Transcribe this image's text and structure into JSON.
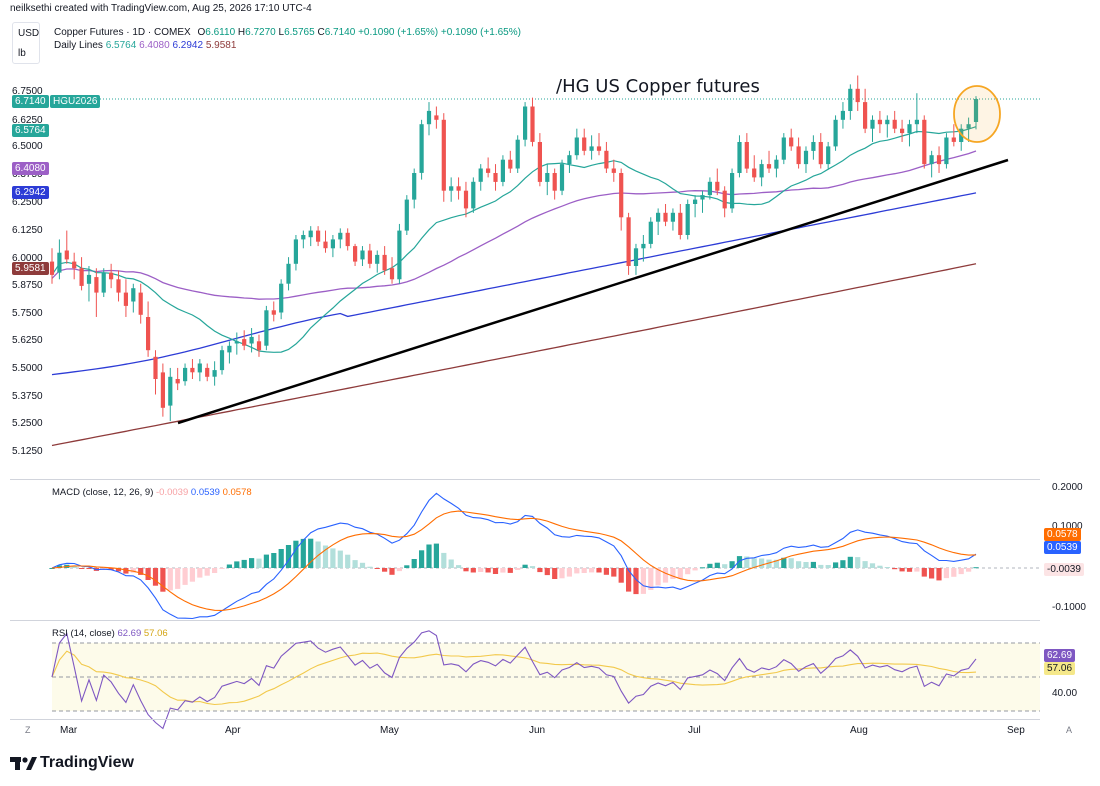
{
  "header": {
    "credit": "neilksethi created with TradingView.com, Aug 25, 2026 17:10 UTC-4",
    "currency": "USD",
    "unit": "lb",
    "symbol_line": "Copper Futures · 1D · COMEX",
    "ohlc": {
      "o_label": "O",
      "o": "6.6110",
      "h_label": "H",
      "h": "6.7270",
      "l_label": "L",
      "l": "6.5765",
      "c_label": "C",
      "c": "6.7140",
      "change": "+0.1090 (+1.65%)",
      "change2": "+0.1090 (+1.65%)"
    },
    "daily_lines_label": "Daily Lines",
    "daily_lines": [
      "6.5764",
      "6.4080",
      "6.2942",
      "5.9581"
    ]
  },
  "colors": {
    "up": "#26a69a",
    "down": "#ef5350",
    "ma20": "#26a69a",
    "ma50": "#9c5fc6",
    "ma100": "#2d3cd6",
    "ma200": "#8e3b3b",
    "macd": "#2962ff",
    "signal": "#ff6d00",
    "rsi": "#7e57c2",
    "rsi_ma": "#f2c94c",
    "trendline": "#000000",
    "circle": "#f6a623"
  },
  "price_tags": {
    "last": "6.7140",
    "symbol": "HGU2026",
    "ma20": "6.5764",
    "ma50": "6.4080",
    "ma100": "6.2942",
    "ma200": "5.9581"
  },
  "annotation": "/HG US Copper futures",
  "y_labels": [
    "6.7500",
    "6.6250",
    "6.5000",
    "6.3750",
    "6.2500",
    "6.1250",
    "6.0000",
    "5.8750",
    "5.7500",
    "5.6250",
    "5.5000",
    "5.3750",
    "5.2500",
    "5.1250"
  ],
  "macd_panel": {
    "label": "MACD (close, 12, 26, 9)",
    "values": [
      "-0.0039",
      "0.0539",
      "0.0578"
    ],
    "axis": [
      "0.2000",
      "0.1000",
      "-0.1000"
    ],
    "tags": [
      "0.0578",
      "0.0539",
      "-0.0039"
    ]
  },
  "rsi_panel": {
    "label": "RSI (14, close)",
    "values": [
      "62.69",
      "57.06"
    ],
    "axis": [
      "40.00"
    ],
    "tags": [
      "62.69",
      "57.06"
    ]
  },
  "x_labels": [
    "Mar",
    "Apr",
    "May",
    "Jun",
    "Jul",
    "Aug",
    "Sep"
  ],
  "corner_left": "Z",
  "corner_right": "A",
  "logo_text": "TradingView",
  "chart_data": {
    "type": "candlestick",
    "title": "Copper Futures · 1D · COMEX",
    "ylim": [
      5.1,
      6.8
    ],
    "x_range": [
      "2026-02-24",
      "2026-08-25"
    ],
    "ohlc_last": {
      "open": 6.611,
      "high": 6.727,
      "low": 6.5765,
      "close": 6.714
    },
    "candles": [
      {
        "d": "02-25",
        "o": 5.98,
        "h": 6.04,
        "l": 5.88,
        "c": 5.92
      },
      {
        "d": "02-26",
        "o": 5.93,
        "h": 6.08,
        "l": 5.9,
        "c": 6.02
      },
      {
        "d": "02-27",
        "o": 6.03,
        "h": 6.12,
        "l": 5.97,
        "c": 5.99
      },
      {
        "d": "03-02",
        "o": 5.98,
        "h": 6.02,
        "l": 5.9,
        "c": 5.95
      },
      {
        "d": "03-03",
        "o": 5.95,
        "h": 6.0,
        "l": 5.85,
        "c": 5.87
      },
      {
        "d": "03-04",
        "o": 5.88,
        "h": 5.96,
        "l": 5.8,
        "c": 5.92
      },
      {
        "d": "03-05",
        "o": 5.91,
        "h": 5.95,
        "l": 5.73,
        "c": 5.84
      },
      {
        "d": "03-06",
        "o": 5.84,
        "h": 5.95,
        "l": 5.82,
        "c": 5.93
      },
      {
        "d": "03-09",
        "o": 5.93,
        "h": 5.97,
        "l": 5.86,
        "c": 5.9
      },
      {
        "d": "03-10",
        "o": 5.9,
        "h": 5.94,
        "l": 5.8,
        "c": 5.84
      },
      {
        "d": "03-11",
        "o": 5.84,
        "h": 5.9,
        "l": 5.73,
        "c": 5.78
      },
      {
        "d": "03-12",
        "o": 5.8,
        "h": 5.88,
        "l": 5.75,
        "c": 5.86
      },
      {
        "d": "03-13",
        "o": 5.84,
        "h": 5.88,
        "l": 5.7,
        "c": 5.74
      },
      {
        "d": "03-16",
        "o": 5.73,
        "h": 5.8,
        "l": 5.55,
        "c": 5.58
      },
      {
        "d": "03-17",
        "o": 5.55,
        "h": 5.58,
        "l": 5.38,
        "c": 5.45
      },
      {
        "d": "03-18",
        "o": 5.48,
        "h": 5.52,
        "l": 5.28,
        "c": 5.32
      },
      {
        "d": "03-19",
        "o": 5.33,
        "h": 5.5,
        "l": 5.26,
        "c": 5.46
      },
      {
        "d": "03-20",
        "o": 5.45,
        "h": 5.5,
        "l": 5.4,
        "c": 5.43
      },
      {
        "d": "03-23",
        "o": 5.44,
        "h": 5.52,
        "l": 5.42,
        "c": 5.5
      },
      {
        "d": "03-24",
        "o": 5.5,
        "h": 5.54,
        "l": 5.45,
        "c": 5.48
      },
      {
        "d": "03-25",
        "o": 5.48,
        "h": 5.54,
        "l": 5.44,
        "c": 5.52
      },
      {
        "d": "03-26",
        "o": 5.5,
        "h": 5.52,
        "l": 5.44,
        "c": 5.46
      },
      {
        "d": "03-27",
        "o": 5.46,
        "h": 5.53,
        "l": 5.42,
        "c": 5.49
      },
      {
        "d": "03-30",
        "o": 5.49,
        "h": 5.6,
        "l": 5.47,
        "c": 5.58
      },
      {
        "d": "03-31",
        "o": 5.57,
        "h": 5.62,
        "l": 5.52,
        "c": 5.6
      },
      {
        "d": "04-01",
        "o": 5.61,
        "h": 5.66,
        "l": 5.56,
        "c": 5.62
      },
      {
        "d": "04-02",
        "o": 5.63,
        "h": 5.67,
        "l": 5.58,
        "c": 5.6
      },
      {
        "d": "04-06",
        "o": 5.61,
        "h": 5.68,
        "l": 5.57,
        "c": 5.64
      },
      {
        "d": "04-07",
        "o": 5.62,
        "h": 5.65,
        "l": 5.55,
        "c": 5.58
      },
      {
        "d": "04-08",
        "o": 5.6,
        "h": 5.78,
        "l": 5.58,
        "c": 5.76
      },
      {
        "d": "04-09",
        "o": 5.76,
        "h": 5.8,
        "l": 5.71,
        "c": 5.74
      },
      {
        "d": "04-10",
        "o": 5.75,
        "h": 5.9,
        "l": 5.72,
        "c": 5.88
      },
      {
        "d": "04-13",
        "o": 5.88,
        "h": 6.0,
        "l": 5.85,
        "c": 5.97
      },
      {
        "d": "04-14",
        "o": 5.97,
        "h": 6.1,
        "l": 5.94,
        "c": 6.08
      },
      {
        "d": "04-15",
        "o": 6.08,
        "h": 6.12,
        "l": 6.04,
        "c": 6.1
      },
      {
        "d": "04-16",
        "o": 6.09,
        "h": 6.14,
        "l": 6.05,
        "c": 6.12
      },
      {
        "d": "04-17",
        "o": 6.12,
        "h": 6.14,
        "l": 6.05,
        "c": 6.07
      },
      {
        "d": "04-20",
        "o": 6.07,
        "h": 6.12,
        "l": 6.02,
        "c": 6.04
      },
      {
        "d": "04-21",
        "o": 6.04,
        "h": 6.1,
        "l": 6.0,
        "c": 6.08
      },
      {
        "d": "04-22",
        "o": 6.08,
        "h": 6.13,
        "l": 6.04,
        "c": 6.11
      },
      {
        "d": "04-23",
        "o": 6.11,
        "h": 6.13,
        "l": 6.03,
        "c": 6.05
      },
      {
        "d": "04-24",
        "o": 6.05,
        "h": 6.06,
        "l": 5.96,
        "c": 5.98
      },
      {
        "d": "04-27",
        "o": 5.99,
        "h": 6.05,
        "l": 5.96,
        "c": 6.03
      },
      {
        "d": "04-28",
        "o": 6.03,
        "h": 6.06,
        "l": 5.95,
        "c": 5.97
      },
      {
        "d": "04-29",
        "o": 5.97,
        "h": 6.03,
        "l": 5.93,
        "c": 6.01
      },
      {
        "d": "04-30",
        "o": 6.01,
        "h": 6.05,
        "l": 5.92,
        "c": 5.94
      },
      {
        "d": "05-01",
        "o": 5.95,
        "h": 6.0,
        "l": 5.88,
        "c": 5.9
      },
      {
        "d": "05-04",
        "o": 5.9,
        "h": 6.15,
        "l": 5.88,
        "c": 6.12
      },
      {
        "d": "05-05",
        "o": 6.12,
        "h": 6.28,
        "l": 6.1,
        "c": 6.26
      },
      {
        "d": "05-06",
        "o": 6.26,
        "h": 6.4,
        "l": 6.22,
        "c": 6.38
      },
      {
        "d": "05-07",
        "o": 6.38,
        "h": 6.62,
        "l": 6.35,
        "c": 6.6
      },
      {
        "d": "05-08",
        "o": 6.6,
        "h": 6.7,
        "l": 6.55,
        "c": 6.66
      },
      {
        "d": "05-11",
        "o": 6.64,
        "h": 6.68,
        "l": 6.58,
        "c": 6.62
      },
      {
        "d": "05-12",
        "o": 6.62,
        "h": 6.65,
        "l": 6.25,
        "c": 6.3
      },
      {
        "d": "05-13",
        "o": 6.3,
        "h": 6.36,
        "l": 6.25,
        "c": 6.32
      },
      {
        "d": "05-14",
        "o": 6.32,
        "h": 6.36,
        "l": 6.26,
        "c": 6.3
      },
      {
        "d": "05-15",
        "o": 6.3,
        "h": 6.34,
        "l": 6.18,
        "c": 6.22
      },
      {
        "d": "05-18",
        "o": 6.22,
        "h": 6.36,
        "l": 6.2,
        "c": 6.34
      },
      {
        "d": "05-19",
        "o": 6.34,
        "h": 6.42,
        "l": 6.3,
        "c": 6.4
      },
      {
        "d": "05-20",
        "o": 6.4,
        "h": 6.45,
        "l": 6.36,
        "c": 6.38
      },
      {
        "d": "05-21",
        "o": 6.38,
        "h": 6.42,
        "l": 6.3,
        "c": 6.34
      },
      {
        "d": "05-22",
        "o": 6.34,
        "h": 6.46,
        "l": 6.32,
        "c": 6.44
      },
      {
        "d": "05-26",
        "o": 6.44,
        "h": 6.48,
        "l": 6.38,
        "c": 6.4
      },
      {
        "d": "05-27",
        "o": 6.4,
        "h": 6.55,
        "l": 6.38,
        "c": 6.53
      },
      {
        "d": "05-28",
        "o": 6.53,
        "h": 6.7,
        "l": 6.5,
        "c": 6.68
      },
      {
        "d": "05-29",
        "o": 6.68,
        "h": 6.72,
        "l": 6.5,
        "c": 6.52
      },
      {
        "d": "06-01",
        "o": 6.52,
        "h": 6.56,
        "l": 6.32,
        "c": 6.34
      },
      {
        "d": "06-02",
        "o": 6.34,
        "h": 6.42,
        "l": 6.28,
        "c": 6.38
      },
      {
        "d": "06-03",
        "o": 6.38,
        "h": 6.4,
        "l": 6.26,
        "c": 6.3
      },
      {
        "d": "06-04",
        "o": 6.3,
        "h": 6.44,
        "l": 6.28,
        "c": 6.42
      },
      {
        "d": "06-05",
        "o": 6.42,
        "h": 6.48,
        "l": 6.38,
        "c": 6.46
      },
      {
        "d": "06-08",
        "o": 6.46,
        "h": 6.58,
        "l": 6.44,
        "c": 6.54
      },
      {
        "d": "06-09",
        "o": 6.54,
        "h": 6.58,
        "l": 6.46,
        "c": 6.48
      },
      {
        "d": "06-10",
        "o": 6.48,
        "h": 6.55,
        "l": 6.44,
        "c": 6.5
      },
      {
        "d": "06-11",
        "o": 6.5,
        "h": 6.56,
        "l": 6.46,
        "c": 6.48
      },
      {
        "d": "06-12",
        "o": 6.48,
        "h": 6.52,
        "l": 6.38,
        "c": 6.4
      },
      {
        "d": "06-15",
        "o": 6.4,
        "h": 6.44,
        "l": 6.34,
        "c": 6.38
      },
      {
        "d": "06-16",
        "o": 6.38,
        "h": 6.4,
        "l": 6.12,
        "c": 6.18
      },
      {
        "d": "06-17",
        "o": 6.18,
        "h": 6.2,
        "l": 5.92,
        "c": 5.96
      },
      {
        "d": "06-18",
        "o": 5.96,
        "h": 6.06,
        "l": 5.92,
        "c": 6.04
      },
      {
        "d": "06-19",
        "o": 6.04,
        "h": 6.1,
        "l": 5.98,
        "c": 6.06
      },
      {
        "d": "06-22",
        "o": 6.06,
        "h": 6.18,
        "l": 6.04,
        "c": 6.16
      },
      {
        "d": "06-23",
        "o": 6.16,
        "h": 6.22,
        "l": 6.1,
        "c": 6.2
      },
      {
        "d": "06-24",
        "o": 6.2,
        "h": 6.24,
        "l": 6.14,
        "c": 6.16
      },
      {
        "d": "06-25",
        "o": 6.16,
        "h": 6.22,
        "l": 6.12,
        "c": 6.2
      },
      {
        "d": "06-26",
        "o": 6.2,
        "h": 6.24,
        "l": 6.08,
        "c": 6.1
      },
      {
        "d": "06-29",
        "o": 6.1,
        "h": 6.26,
        "l": 6.08,
        "c": 6.24
      },
      {
        "d": "06-30",
        "o": 6.24,
        "h": 6.28,
        "l": 6.18,
        "c": 6.26
      },
      {
        "d": "07-01",
        "o": 6.26,
        "h": 6.3,
        "l": 6.2,
        "c": 6.28
      },
      {
        "d": "07-02",
        "o": 6.28,
        "h": 6.36,
        "l": 6.26,
        "c": 6.34
      },
      {
        "d": "07-06",
        "o": 6.34,
        "h": 6.4,
        "l": 6.28,
        "c": 6.3
      },
      {
        "d": "07-07",
        "o": 6.3,
        "h": 6.32,
        "l": 6.18,
        "c": 6.22
      },
      {
        "d": "07-08",
        "o": 6.22,
        "h": 6.4,
        "l": 6.2,
        "c": 6.38
      },
      {
        "d": "07-09",
        "o": 6.38,
        "h": 6.55,
        "l": 6.36,
        "c": 6.52
      },
      {
        "d": "07-10",
        "o": 6.52,
        "h": 6.56,
        "l": 6.38,
        "c": 6.4
      },
      {
        "d": "07-13",
        "o": 6.4,
        "h": 6.46,
        "l": 6.34,
        "c": 6.36
      },
      {
        "d": "07-14",
        "o": 6.36,
        "h": 6.44,
        "l": 6.32,
        "c": 6.42
      },
      {
        "d": "07-15",
        "o": 6.42,
        "h": 6.48,
        "l": 6.38,
        "c": 6.4
      },
      {
        "d": "07-16",
        "o": 6.4,
        "h": 6.46,
        "l": 6.36,
        "c": 6.44
      },
      {
        "d": "07-17",
        "o": 6.44,
        "h": 6.56,
        "l": 6.42,
        "c": 6.54
      },
      {
        "d": "07-20",
        "o": 6.54,
        "h": 6.58,
        "l": 6.48,
        "c": 6.5
      },
      {
        "d": "07-21",
        "o": 6.5,
        "h": 6.54,
        "l": 6.4,
        "c": 6.42
      },
      {
        "d": "07-22",
        "o": 6.42,
        "h": 6.5,
        "l": 6.38,
        "c": 6.48
      },
      {
        "d": "07-23",
        "o": 6.48,
        "h": 6.55,
        "l": 6.44,
        "c": 6.52
      },
      {
        "d": "07-24",
        "o": 6.52,
        "h": 6.56,
        "l": 6.4,
        "c": 6.42
      },
      {
        "d": "07-27",
        "o": 6.42,
        "h": 6.52,
        "l": 6.4,
        "c": 6.5
      },
      {
        "d": "07-28",
        "o": 6.5,
        "h": 6.64,
        "l": 6.48,
        "c": 6.62
      },
      {
        "d": "07-29",
        "o": 6.62,
        "h": 6.7,
        "l": 6.58,
        "c": 6.66
      },
      {
        "d": "07-30",
        "o": 6.66,
        "h": 6.78,
        "l": 6.62,
        "c": 6.76
      },
      {
        "d": "07-31",
        "o": 6.76,
        "h": 6.82,
        "l": 6.66,
        "c": 6.7
      },
      {
        "d": "08-03",
        "o": 6.7,
        "h": 6.76,
        "l": 6.56,
        "c": 6.58
      },
      {
        "d": "08-04",
        "o": 6.58,
        "h": 6.64,
        "l": 6.52,
        "c": 6.62
      },
      {
        "d": "08-05",
        "o": 6.62,
        "h": 6.66,
        "l": 6.56,
        "c": 6.6
      },
      {
        "d": "08-06",
        "o": 6.6,
        "h": 6.64,
        "l": 6.54,
        "c": 6.62
      },
      {
        "d": "08-07",
        "o": 6.62,
        "h": 6.66,
        "l": 6.56,
        "c": 6.58
      },
      {
        "d": "08-10",
        "o": 6.58,
        "h": 6.62,
        "l": 6.52,
        "c": 6.56
      },
      {
        "d": "08-11",
        "o": 6.56,
        "h": 6.62,
        "l": 6.5,
        "c": 6.6
      },
      {
        "d": "08-12",
        "o": 6.6,
        "h": 6.74,
        "l": 6.56,
        "c": 6.62
      },
      {
        "d": "08-13",
        "o": 6.62,
        "h": 6.64,
        "l": 6.4,
        "c": 6.42
      },
      {
        "d": "08-14",
        "o": 6.42,
        "h": 6.48,
        "l": 6.36,
        "c": 6.46
      },
      {
        "d": "08-17",
        "o": 6.46,
        "h": 6.5,
        "l": 6.38,
        "c": 6.42
      },
      {
        "d": "08-18",
        "o": 6.42,
        "h": 6.56,
        "l": 6.4,
        "c": 6.54
      },
      {
        "d": "08-19",
        "o": 6.54,
        "h": 6.6,
        "l": 6.5,
        "c": 6.52
      },
      {
        "d": "08-20",
        "o": 6.52,
        "h": 6.6,
        "l": 6.48,
        "c": 6.58
      },
      {
        "d": "08-21",
        "o": 6.58,
        "h": 6.63,
        "l": 6.52,
        "c": 6.6
      },
      {
        "d": "08-24",
        "o": 6.61,
        "h": 6.727,
        "l": 6.5765,
        "c": 6.714
      }
    ]
  }
}
